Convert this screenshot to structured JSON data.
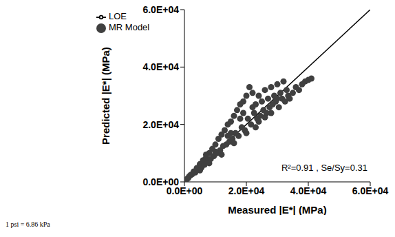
{
  "chart_data": {
    "type": "scatter",
    "x_label": "Measured |E*| (MPa)",
    "y_label": "Predicted |E*| (MPa)",
    "annotation": "R²=0.91 , Se/Sy=0.31",
    "footnote": "1 psi = 6.86 kPa",
    "xlim": [
      0,
      60000
    ],
    "ylim": [
      0,
      60000
    ],
    "xticks": [
      {
        "value": 0,
        "label": "0.0E+00"
      },
      {
        "value": 20000,
        "label": "2.0E+04"
      },
      {
        "value": 40000,
        "label": "4.0E+04"
      },
      {
        "value": 60000,
        "label": "6.0E+04"
      }
    ],
    "yticks": [
      {
        "value": 0,
        "label": "0.0E+00"
      },
      {
        "value": 20000,
        "label": "2.0E+04"
      },
      {
        "value": 40000,
        "label": "4.0E+04"
      },
      {
        "value": 60000,
        "label": "6.0E+04"
      }
    ],
    "grid": false,
    "legend": "upper left",
    "series": [
      {
        "name": "MR Model",
        "type": "scatter",
        "color": "#404040",
        "marker": "circle",
        "x": [
          300,
          600,
          900,
          1200,
          1500,
          2000,
          2500,
          3000,
          3500,
          4000,
          4500,
          5000,
          5500,
          6000,
          6500,
          7000,
          7500,
          8000,
          8500,
          9000,
          9500,
          10000,
          10500,
          11000,
          11500,
          12000,
          12500,
          13000,
          13500,
          14000,
          14500,
          15000,
          15500,
          16000,
          16500,
          17000,
          17500,
          18000,
          18500,
          19000,
          19500,
          20000,
          20500,
          21000,
          21500,
          22000,
          22500,
          23000,
          23500,
          24000,
          24500,
          25000,
          25500,
          26000,
          26500,
          27000,
          27500,
          28000,
          28500,
          29000,
          29500,
          30000,
          30500,
          31000,
          31500,
          32000,
          32500,
          33000,
          33500,
          34000,
          35000,
          36000,
          37000,
          38000,
          39000,
          40000,
          41000,
          10000,
          12000,
          15000,
          18000,
          22000,
          24000,
          26000,
          28000,
          30000,
          16000,
          20000,
          8000,
          5000,
          7000,
          14000,
          19000,
          23000
        ],
        "values": [
          400,
          700,
          1100,
          1300,
          1900,
          2400,
          2700,
          3600,
          3300,
          4800,
          4200,
          6200,
          5000,
          7500,
          6000,
          8500,
          7000,
          10000,
          8000,
          11500,
          9000,
          13000,
          10000,
          15000,
          11000,
          16500,
          12500,
          18000,
          13000,
          20000,
          14000,
          21000,
          15000,
          23000,
          17000,
          25000,
          16000,
          27000,
          19000,
          28000,
          18000,
          30000,
          22000,
          33000,
          20000,
          31000,
          24000,
          27000,
          22000,
          30000,
          23000,
          28000,
          25000,
          32000,
          24000,
          29000,
          26000,
          33000,
          27000,
          30000,
          28000,
          34000,
          26000,
          31000,
          29000,
          35000,
          28000,
          32000,
          30000,
          29000,
          31000,
          33000,
          32000,
          34000,
          35000,
          35500,
          36000,
          10500,
          9500,
          17000,
          22000,
          26000,
          21000,
          22500,
          24000,
          29000,
          13500,
          17000,
          6500,
          4000,
          9500,
          16000,
          24000,
          19000
        ]
      },
      {
        "name": "LOE",
        "type": "line",
        "color": "#000000",
        "line_style": "solid",
        "x": [
          0,
          60000
        ],
        "values": [
          0,
          60000
        ]
      }
    ]
  }
}
